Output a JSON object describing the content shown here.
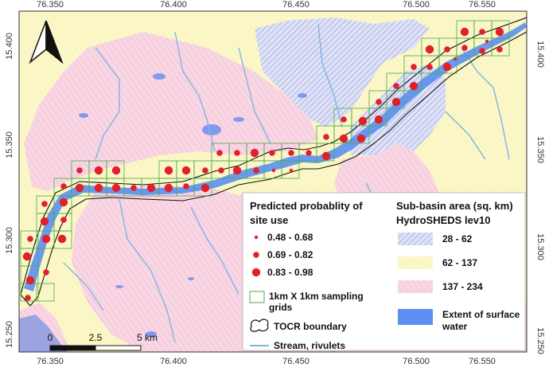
{
  "axes": {
    "x_ticks": [
      "76.350",
      "76.400",
      "76.450",
      "76.500",
      "76.550"
    ],
    "y_ticks": [
      "15.400",
      "15.350",
      "15.300",
      "15.250"
    ]
  },
  "scale_bar": {
    "labels": [
      "0",
      "2.5",
      "5 km"
    ]
  },
  "north_arrow": {
    "icon": "north-arrow-icon"
  },
  "legend_probability": {
    "title_line1": "Predicted probablity of",
    "title_line2": "site use",
    "classes": [
      {
        "label": "0.48 - 0.68",
        "color": "#e0202a"
      },
      {
        "label": "0.69 - 0.82",
        "color": "#e0202a"
      },
      {
        "label": "0.83 - 0.98",
        "color": "#e0202a"
      }
    ],
    "grid_label_line1": "1km X 1km sampling",
    "grid_label_line2": "grids",
    "boundary_label": "TOCR boundary",
    "stream_label": "Stream, rivulets"
  },
  "legend_subbasin": {
    "title_line1": "Sub-basin area (sq. km)",
    "title_line2": "HydroSHEDS lev10",
    "classes": [
      {
        "label": "28 - 62",
        "color": "#6f7fd6"
      },
      {
        "label": "62 - 137",
        "color": "#f1ee9a"
      },
      {
        "label": "137 - 234",
        "color": "#f2a6c0"
      }
    ],
    "water_label_line1": "Extent of surface",
    "water_label_line2": "water",
    "water_color": "#5b8ff0"
  },
  "colors": {
    "yellow_bg": "#fbf7c6",
    "pink_bg": "#f6cddd",
    "blue_bg": "#d4d9f3",
    "stream": "#7fb5e6",
    "water": "#5b8ff0",
    "grid": "#4caa4c",
    "site": "#e0202a"
  }
}
